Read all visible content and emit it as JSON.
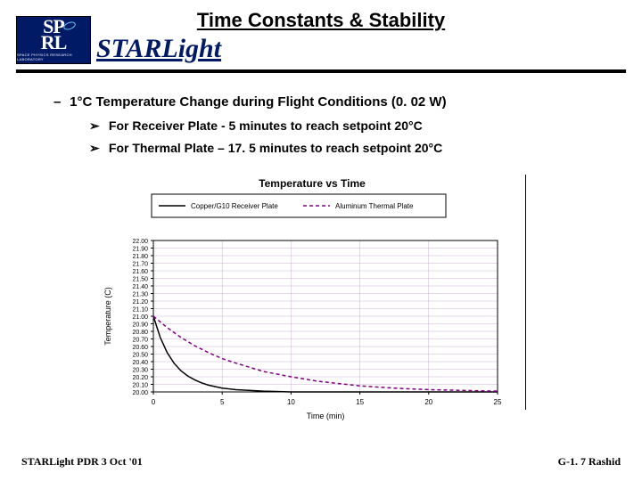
{
  "header": {
    "title": "Time Constants & Stability",
    "brand": "STARLight",
    "logo": {
      "top": "SP",
      "bottom": "RL",
      "sub": "SPACE PHYSICS RESEARCH LABORATORY"
    }
  },
  "bullets": {
    "main": "1°C Temperature Change during Flight Conditions (0. 02 W)",
    "sub1": "For Receiver Plate - 5 minutes to reach setpoint 20°C",
    "sub2": "For Thermal Plate – 17. 5 minutes to reach setpoint 20°C"
  },
  "chart": {
    "title": "Temperature vs Time",
    "title_fontsize": 12,
    "xlabel": "Time (min)",
    "ylabel": "Temperature (C)",
    "label_fontsize": 9,
    "xlim": [
      0,
      25
    ],
    "xtick_step": 5,
    "ylim": [
      20.0,
      22.0
    ],
    "ytick_step": 0.1,
    "ytick_format": "fixed2",
    "background_color": "#ffffff",
    "border_color": "#000000",
    "grid_color": "#c8b0d0",
    "legend": {
      "items": [
        {
          "label": "Copper/G10 Receiver Plate",
          "color": "#000000",
          "dash": "none"
        },
        {
          "label": "Aluminum Thermal Plate",
          "color": "#800080",
          "dash": "4 3"
        }
      ],
      "border_color": "#000000",
      "fontsize": 8
    },
    "series": [
      {
        "name": "Copper/G10 Receiver Plate",
        "color": "#000000",
        "dash": "none",
        "width": 1.5,
        "x": [
          0,
          0.5,
          1,
          1.5,
          2,
          2.5,
          3,
          3.5,
          4,
          5,
          6,
          8,
          10,
          15,
          20,
          25
        ],
        "y": [
          21.0,
          20.72,
          20.52,
          20.38,
          20.28,
          20.21,
          20.16,
          20.12,
          20.09,
          20.05,
          20.03,
          20.01,
          20.0,
          20.0,
          20.0,
          20.0
        ]
      },
      {
        "name": "Aluminum Thermal Plate",
        "color": "#800080",
        "dash": "4 3",
        "width": 1.5,
        "x": [
          0,
          1,
          2,
          3,
          4,
          5,
          6,
          8,
          10,
          12,
          15,
          17.5,
          20,
          25
        ],
        "y": [
          21.0,
          20.85,
          20.72,
          20.61,
          20.52,
          20.44,
          20.38,
          20.27,
          20.2,
          20.14,
          20.08,
          20.05,
          20.03,
          20.01
        ]
      }
    ]
  },
  "footer": {
    "left": "STARLight PDR 3 Oct '01",
    "right": "G-1. 7 Rashid"
  }
}
